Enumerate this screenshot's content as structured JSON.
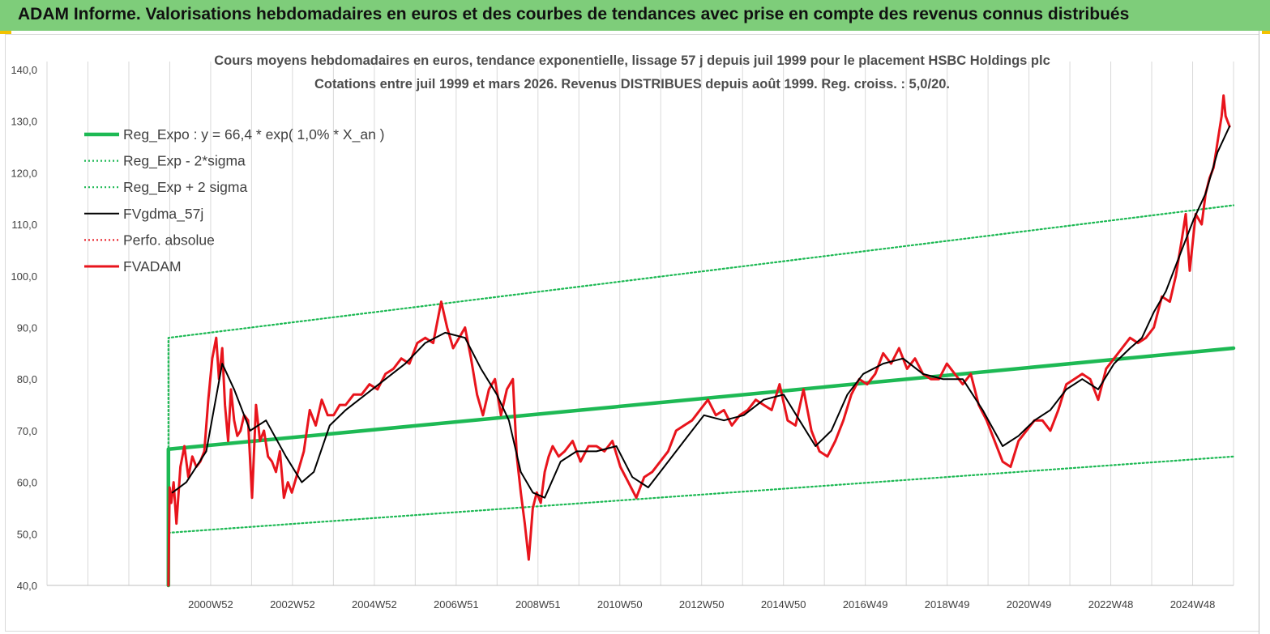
{
  "banner": {
    "title": "ADAM Informe. Valorisations hebdomadaires en euros et des courbes de tendances avec prise en compte des revenus connus distribués",
    "background": "#7ecd7a"
  },
  "chart_data": {
    "type": "line",
    "title_line1": "Cours moyens hebdomadaires en euros, tendance exponentielle, lissage 57 j depuis juil 1999 pour le placement HSBC Holdings plc",
    "title_line2": "Cotations entre juil 1999 et mars 2026. Revenus DISTRIBUES  depuis août 1999. Reg. croiss. : 5,0/20.",
    "ylim": [
      40,
      140
    ],
    "y_ticks": [
      "40,0",
      "50,0",
      "60,0",
      "70,0",
      "80,0",
      "90,0",
      "100,0",
      "110,0",
      "120,0",
      "130,0",
      "140,0"
    ],
    "x_ticks": [
      "2000W52",
      "2002W52",
      "2004W52",
      "2006W51",
      "2008W51",
      "2010W50",
      "2012W50",
      "2014W50",
      "2016W49",
      "2018W49",
      "2020W49",
      "2022W48",
      "2024W48"
    ],
    "x_range": [
      1996.5,
      2026.3
    ],
    "grid": "vertical",
    "legend_position": "top-left",
    "legend": [
      {
        "label": "Reg_Expo : y = 66,4 * exp( 1,0% *  X_an )",
        "color": "#1db954",
        "style": "solid-thick"
      },
      {
        "label": "Reg_Exp - 2*sigma",
        "color": "#1db954",
        "style": "dotted"
      },
      {
        "label": "Reg_Exp + 2 sigma",
        "color": "#1db954",
        "style": "dotted"
      },
      {
        "label": "FVgdma_57j",
        "color": "#000000",
        "style": "solid"
      },
      {
        "label": "Perfo. absolue",
        "color": "#e8141c",
        "style": "dotted"
      },
      {
        "label": "FVADAM",
        "color": "#e8141c",
        "style": "solid-thick"
      }
    ],
    "series": [
      {
        "name": "Reg_Expo : y = 66,4 * exp( 1,0% *  X_an )",
        "x": [
          1999.55,
          2026.3
        ],
        "y": [
          66.4,
          86.0
        ]
      },
      {
        "name": "Reg_Exp - 2*sigma",
        "x": [
          1999.55,
          2026.3
        ],
        "y": [
          50.2,
          65.0
        ]
      },
      {
        "name": "Reg_Exp + 2 sigma",
        "x": [
          1999.55,
          2026.3
        ],
        "y": [
          88.0,
          113.7
        ]
      },
      {
        "name": "FVgdma_57j",
        "x": [
          1999.65,
          2000.0,
          2000.5,
          2000.9,
          2001.2,
          2001.6,
          2002.0,
          2002.5,
          2002.9,
          2003.2,
          2003.6,
          2004.0,
          2004.5,
          2005.0,
          2005.5,
          2006.0,
          2006.5,
          2007.0,
          2007.4,
          2007.8,
          2008.1,
          2008.4,
          2008.7,
          2009.0,
          2009.4,
          2009.8,
          2010.3,
          2010.8,
          2011.2,
          2011.6,
          2012.0,
          2012.5,
          2013.0,
          2013.5,
          2014.0,
          2014.5,
          2015.0,
          2015.4,
          2015.8,
          2016.2,
          2016.6,
          2017.0,
          2017.5,
          2018.0,
          2018.5,
          2019.0,
          2019.5,
          2020.0,
          2020.5,
          2020.9,
          2021.3,
          2021.7,
          2022.1,
          2022.5,
          2022.9,
          2023.3,
          2023.7,
          2024.0,
          2024.3,
          2024.6,
          2025.0,
          2025.3,
          2025.6,
          2025.9,
          2026.2
        ],
        "y": [
          58,
          60,
          66,
          83,
          78,
          70,
          72,
          65,
          60,
          62,
          71,
          74,
          77,
          80,
          83,
          87,
          89,
          88,
          82,
          77,
          72,
          62,
          58,
          57,
          64,
          66,
          66,
          67,
          61,
          59,
          63,
          68,
          73,
          72,
          73,
          76,
          77,
          72,
          67,
          70,
          77,
          81,
          83,
          84,
          81,
          80,
          80,
          74,
          67,
          69,
          72,
          74,
          78,
          80,
          78,
          83,
          86,
          88,
          93,
          97,
          105,
          111,
          116,
          124,
          129
        ]
      },
      {
        "name": "FVADAM",
        "x": [
          1999.55,
          1999.58,
          1999.62,
          1999.68,
          1999.75,
          1999.85,
          1999.95,
          2000.05,
          2000.15,
          2000.25,
          2000.35,
          2000.45,
          2000.55,
          2000.65,
          2000.75,
          2000.82,
          2000.9,
          2000.97,
          2001.05,
          2001.12,
          2001.2,
          2001.28,
          2001.36,
          2001.45,
          2001.55,
          2001.65,
          2001.75,
          2001.85,
          2001.95,
          2002.05,
          2002.15,
          2002.25,
          2002.35,
          2002.45,
          2002.55,
          2002.65,
          2002.8,
          2002.95,
          2003.1,
          2003.25,
          2003.4,
          2003.55,
          2003.7,
          2003.85,
          2004.0,
          2004.2,
          2004.4,
          2004.6,
          2004.8,
          2005.0,
          2005.2,
          2005.4,
          2005.6,
          2005.8,
          2006.0,
          2006.2,
          2006.4,
          2006.55,
          2006.7,
          2006.85,
          2007.0,
          2007.15,
          2007.3,
          2007.45,
          2007.6,
          2007.75,
          2007.9,
          2008.05,
          2008.2,
          2008.3,
          2008.4,
          2008.5,
          2008.6,
          2008.7,
          2008.8,
          2008.9,
          2009.0,
          2009.1,
          2009.2,
          2009.35,
          2009.5,
          2009.7,
          2009.9,
          2010.1,
          2010.3,
          2010.5,
          2010.7,
          2010.9,
          2011.1,
          2011.3,
          2011.5,
          2011.7,
          2011.9,
          2012.1,
          2012.3,
          2012.5,
          2012.7,
          2012.9,
          2013.1,
          2013.3,
          2013.5,
          2013.7,
          2013.9,
          2014.1,
          2014.3,
          2014.5,
          2014.7,
          2014.9,
          2015.1,
          2015.3,
          2015.5,
          2015.7,
          2015.9,
          2016.1,
          2016.3,
          2016.5,
          2016.7,
          2016.9,
          2017.1,
          2017.3,
          2017.5,
          2017.7,
          2017.9,
          2018.1,
          2018.3,
          2018.5,
          2018.7,
          2018.9,
          2019.1,
          2019.3,
          2019.5,
          2019.7,
          2019.9,
          2020.1,
          2020.3,
          2020.5,
          2020.7,
          2020.9,
          2021.1,
          2021.3,
          2021.5,
          2021.7,
          2021.9,
          2022.1,
          2022.3,
          2022.5,
          2022.7,
          2022.9,
          2023.1,
          2023.3,
          2023.5,
          2023.7,
          2023.9,
          2024.1,
          2024.3,
          2024.5,
          2024.7,
          2024.85,
          2025.0,
          2025.1,
          2025.2,
          2025.35,
          2025.5,
          2025.6,
          2025.7,
          2025.8,
          2025.9,
          2026.0,
          2026.05,
          2026.1,
          2026.2
        ],
        "y": [
          40,
          59,
          56,
          60,
          52,
          63,
          67,
          61,
          65,
          63,
          64,
          66,
          76,
          84,
          88,
          80,
          86,
          75,
          68,
          78,
          72,
          69,
          70,
          73,
          72,
          57,
          75,
          68,
          70,
          65,
          64,
          62,
          66,
          57,
          60,
          58,
          62,
          66,
          74,
          71,
          76,
          73,
          73,
          75,
          75,
          77,
          77,
          79,
          78,
          81,
          82,
          84,
          83,
          87,
          88,
          87,
          95,
          90,
          86,
          88,
          90,
          84,
          77,
          73,
          78,
          80,
          73,
          78,
          80,
          65,
          58,
          52,
          45,
          55,
          58,
          56,
          62,
          65,
          67,
          65,
          66,
          68,
          64,
          67,
          67,
          66,
          68,
          63,
          60,
          57,
          61,
          62,
          64,
          66,
          70,
          71,
          72,
          74,
          76,
          73,
          74,
          71,
          73,
          74,
          76,
          75,
          74,
          79,
          72,
          71,
          78,
          70,
          66,
          65,
          68,
          72,
          77,
          80,
          79,
          81,
          85,
          83,
          86,
          82,
          84,
          81,
          80,
          80,
          83,
          81,
          79,
          81,
          75,
          72,
          68,
          64,
          63,
          68,
          70,
          72,
          72,
          70,
          74,
          79,
          80,
          81,
          80,
          76,
          82,
          84,
          86,
          88,
          87,
          88,
          90,
          96,
          95,
          100,
          107,
          112,
          101,
          112,
          110,
          116,
          119,
          121,
          126,
          131,
          135,
          131,
          129
        ]
      }
    ]
  }
}
